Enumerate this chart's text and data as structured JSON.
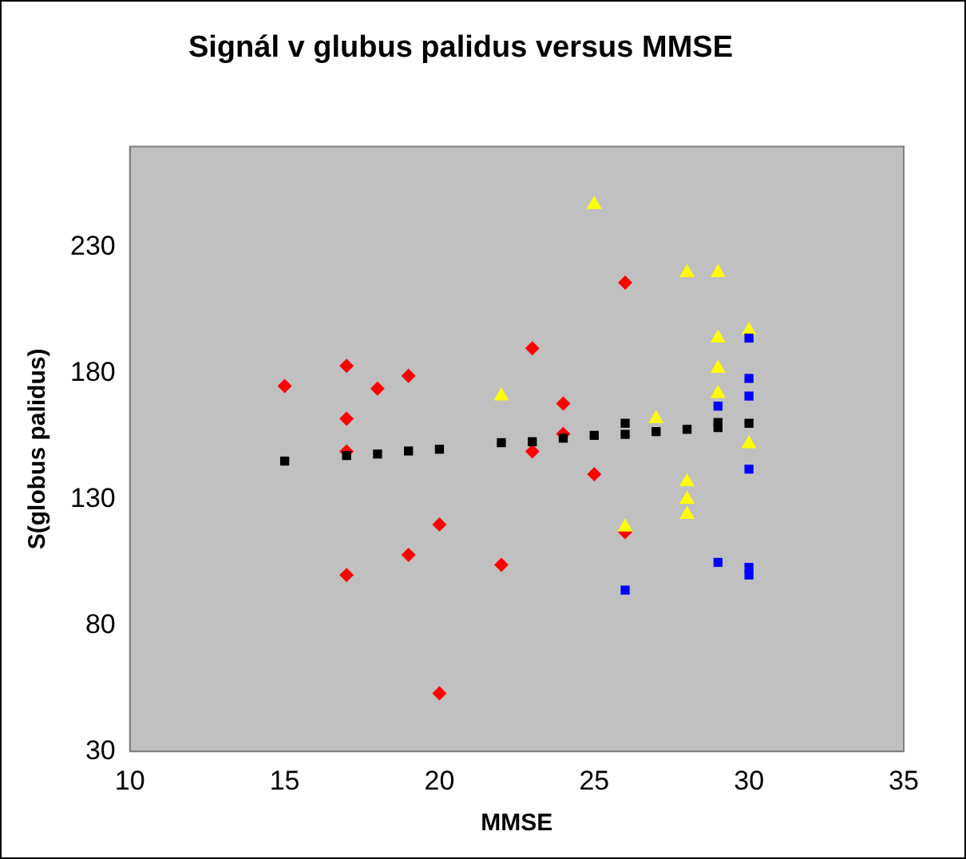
{
  "chart_data": {
    "type": "scatter",
    "title": "Signál v glubus palidus versus MMSE",
    "xlabel": "MMSE",
    "ylabel": "S(globus palidus)",
    "xlim": [
      10,
      35
    ],
    "xticks": [
      10,
      15,
      20,
      25,
      30,
      35
    ],
    "ylim": [
      30,
      270
    ],
    "yticks": [
      30,
      80,
      130,
      180,
      230
    ],
    "grid": false,
    "legend": false,
    "series": [
      {
        "color": "#ff0000",
        "marker": "diamond",
        "x": [
          15,
          17,
          17,
          17,
          17,
          18,
          19,
          19,
          20,
          20,
          22,
          23,
          23,
          24,
          24,
          25,
          26,
          26
        ],
        "values": [
          175,
          183,
          162,
          149,
          100,
          174,
          179,
          108,
          120,
          53,
          104,
          190,
          149,
          168,
          156,
          140,
          216,
          117
        ]
      },
      {
        "color": "#ffff00",
        "marker": "triangle",
        "x": [
          25,
          22,
          28,
          29,
          29,
          30,
          29,
          29,
          27,
          30,
          28,
          28,
          28,
          26
        ],
        "values": [
          247,
          171,
          220,
          220,
          194,
          197,
          182,
          172,
          162,
          152,
          137,
          130,
          124,
          119
        ]
      },
      {
        "color": "#0000ff",
        "marker": "square",
        "x": [
          30,
          30,
          30,
          29,
          30,
          29,
          30,
          30,
          26
        ],
        "values": [
          194,
          178,
          171,
          167,
          142,
          105,
          103,
          100,
          94
        ]
      },
      {
        "color": "#000000",
        "marker": "square",
        "x": [
          15,
          17,
          18,
          19,
          20,
          22,
          23,
          24,
          25,
          26,
          26,
          27,
          28,
          29,
          29,
          30
        ],
        "values": [
          145.2,
          147.4,
          148,
          149.2,
          149.9,
          152.5,
          152.9,
          154.3,
          155.4,
          160.2,
          155.8,
          156.9,
          157.8,
          160.5,
          158.5,
          160.2
        ]
      }
    ]
  }
}
